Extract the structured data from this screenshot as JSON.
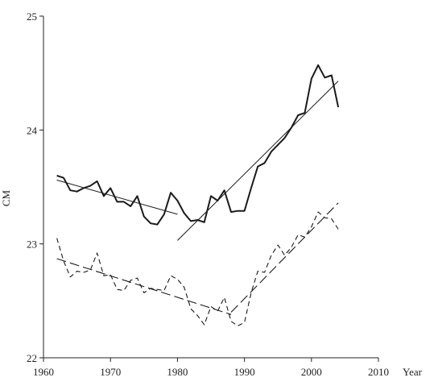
{
  "chart_data": {
    "type": "line",
    "title": "",
    "xlabel": "Year",
    "ylabel": "CM",
    "xlim": [
      1960,
      2010
    ],
    "ylim": [
      22,
      25
    ],
    "x_ticks": [
      1960,
      1970,
      1980,
      1990,
      2000,
      2010
    ],
    "x_tick_labels": [
      "1960",
      "1970",
      "1980",
      "1990",
      "2000",
      "2010"
    ],
    "y_ticks": [
      22,
      23,
      24,
      25
    ],
    "y_tick_labels": [
      "22",
      "23",
      "24",
      "25"
    ],
    "grid": false,
    "legend": "none",
    "series": [
      {
        "style": "solid-thick",
        "color": "#1a1a1a",
        "x": [
          1962,
          1963,
          1964,
          1965,
          1966,
          1967,
          1968,
          1969,
          1970,
          1971,
          1972,
          1973,
          1974,
          1975,
          1976,
          1977,
          1978,
          1979,
          1980,
          1981,
          1982,
          1983,
          1984,
          1985,
          1986,
          1987,
          1988,
          1989,
          1990,
          1991,
          1992,
          1993,
          1994,
          1995,
          1996,
          1997,
          1998,
          1999,
          2000,
          2001,
          2002,
          2003,
          2004
        ],
        "values": [
          23.6,
          23.58,
          23.47,
          23.46,
          23.49,
          23.51,
          23.55,
          23.42,
          23.49,
          23.37,
          23.37,
          23.33,
          23.42,
          23.24,
          23.18,
          23.17,
          23.26,
          23.45,
          23.38,
          23.27,
          23.2,
          23.21,
          23.19,
          23.42,
          23.38,
          23.47,
          23.28,
          23.29,
          23.29,
          23.49,
          23.68,
          23.71,
          23.81,
          23.87,
          23.93,
          24.02,
          24.13,
          24.15,
          24.45,
          24.57,
          24.46,
          24.48,
          24.2
        ]
      },
      {
        "style": "dashed",
        "color": "#1a1a1a",
        "x": [
          1962,
          1963,
          1964,
          1965,
          1966,
          1967,
          1968,
          1969,
          1970,
          1971,
          1972,
          1973,
          1974,
          1975,
          1976,
          1977,
          1978,
          1979,
          1980,
          1981,
          1982,
          1983,
          1984,
          1985,
          1986,
          1987,
          1988,
          1989,
          1990,
          1991,
          1992,
          1993,
          1994,
          1995,
          1996,
          1997,
          1998,
          1999,
          2000,
          2001,
          2002,
          2003,
          2004
        ],
        "values": [
          23.05,
          22.85,
          22.71,
          22.76,
          22.75,
          22.77,
          22.92,
          22.72,
          22.73,
          22.6,
          22.59,
          22.68,
          22.7,
          22.57,
          22.61,
          22.6,
          22.59,
          22.72,
          22.69,
          22.62,
          22.43,
          22.37,
          22.29,
          22.45,
          22.41,
          22.53,
          22.32,
          22.28,
          22.31,
          22.57,
          22.76,
          22.75,
          22.9,
          22.99,
          22.9,
          22.97,
          23.08,
          23.06,
          23.15,
          23.28,
          23.23,
          23.22,
          23.13
        ]
      }
    ],
    "trend_lines": [
      {
        "style": "solid-thin",
        "color": "#1a1a1a",
        "x": [
          1962,
          1980
        ],
        "values": [
          23.56,
          23.26
        ]
      },
      {
        "style": "solid-thin",
        "color": "#1a1a1a",
        "x": [
          1980,
          2004
        ],
        "values": [
          23.03,
          24.43
        ]
      },
      {
        "style": "long-dash",
        "color": "#1a1a1a",
        "x": [
          1962,
          1988
        ],
        "values": [
          22.87,
          22.38
        ]
      },
      {
        "style": "long-dash",
        "color": "#1a1a1a",
        "x": [
          1988,
          2004
        ],
        "values": [
          22.4,
          23.36
        ]
      }
    ]
  }
}
